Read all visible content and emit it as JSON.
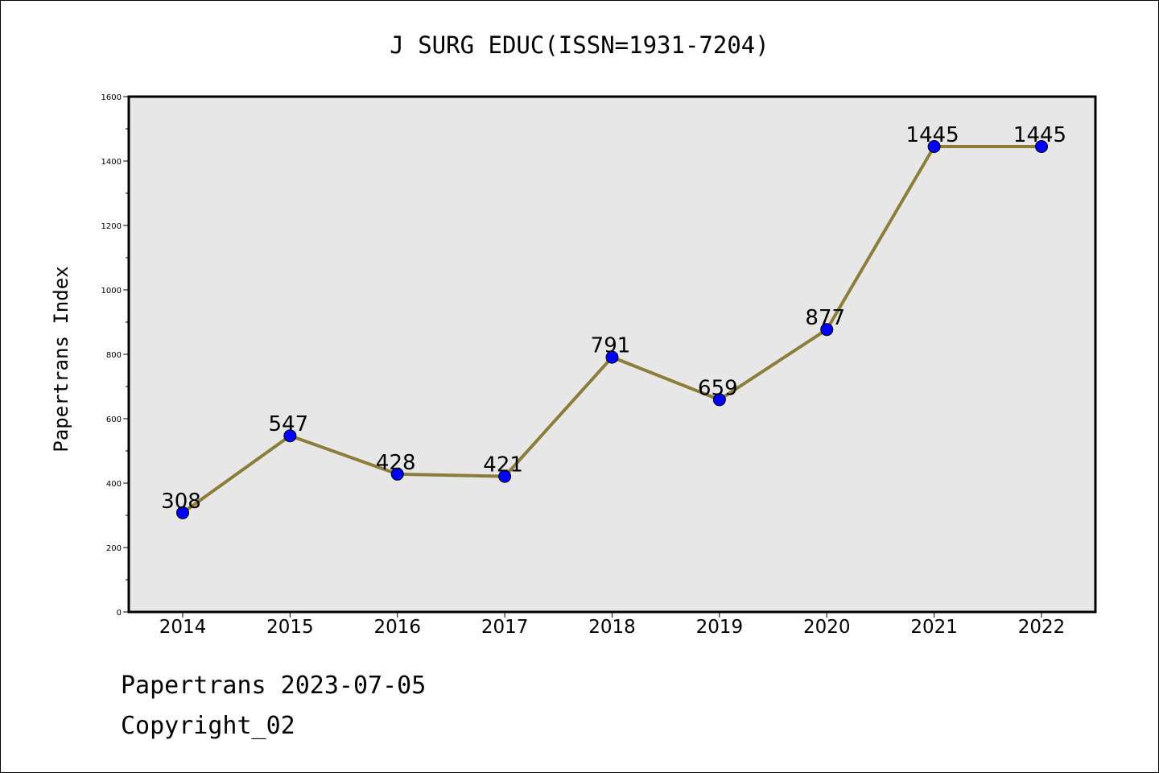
{
  "chart_data": {
    "type": "line",
    "title": "J SURG EDUC(ISSN=1931-7204)",
    "xlabel": "",
    "ylabel": "Papertrans Index",
    "categories": [
      "2014",
      "2015",
      "2016",
      "2017",
      "2018",
      "2019",
      "2020",
      "2021",
      "2022"
    ],
    "series": [
      {
        "values": [
          308,
          547,
          428,
          421,
          791,
          659,
          877,
          1445,
          1445
        ]
      }
    ],
    "data_labels": [
      "308",
      "547",
      "428",
      "421",
      "791",
      "659",
      "877",
      "1445",
      "1445"
    ],
    "y_ticks": [
      "0",
      "200",
      "400",
      "600",
      "800",
      "1000",
      "1200",
      "1400",
      "1600"
    ],
    "ylim": [
      0,
      1600
    ],
    "grid": false,
    "legend": "none",
    "colors": {
      "plot_background": "#e7e7e7",
      "line": "#8c7e3a",
      "marker": "#0000ff",
      "marker_edge": "#000000"
    }
  },
  "footer": {
    "line1": "Papertrans 2023-07-05",
    "line2": "Copyright_02"
  }
}
